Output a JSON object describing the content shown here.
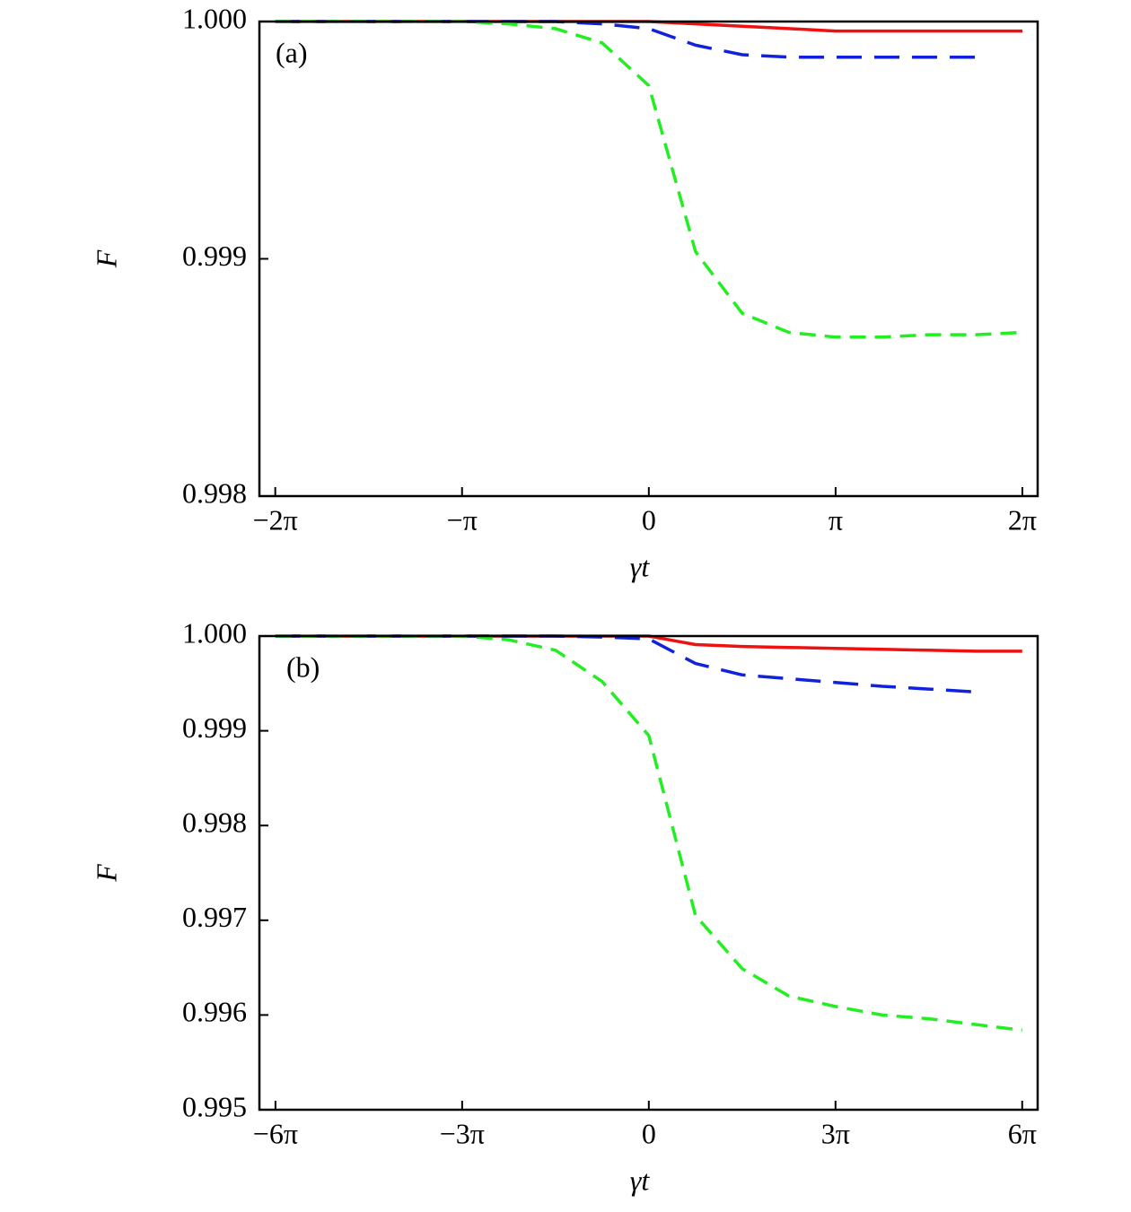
{
  "chart_data": [
    {
      "type": "line",
      "annotation": "(a)",
      "xlabel": "γt",
      "ylabel": "F",
      "x": [
        -6.2832,
        -5.4978,
        -4.7124,
        -3.927,
        -3.1416,
        -2.3562,
        -1.5708,
        -0.7854,
        0,
        0.7854,
        1.5708,
        2.3562,
        3.1416,
        3.927,
        4.7124,
        5.4978,
        6.2832
      ],
      "xlim": [
        -6.55,
        6.54
      ],
      "xticks": [
        {
          "value": -6.2832,
          "label": "−2π"
        },
        {
          "value": -3.1416,
          "label": "−π"
        },
        0,
        {
          "value": 3.1416,
          "label": "π"
        },
        {
          "value": 6.2832,
          "label": "2π"
        }
      ],
      "ylim": [
        0.998,
        1.0
      ],
      "yticks": [
        0.998,
        0.999,
        {
          "value": 1.0,
          "label": "1.000"
        }
      ],
      "series": [
        {
          "color": "#ee1111",
          "dash": "solid",
          "values": [
            1.0,
            1.0,
            1.0,
            1.0,
            1.0,
            1.0,
            1.0,
            1.0,
            1.0,
            0.99999,
            0.99998,
            0.99997,
            0.99996,
            0.99996,
            0.99996,
            0.99996,
            0.99996
          ]
        },
        {
          "color": "#1122dd",
          "dash": "long",
          "values": [
            1.0,
            1.0,
            1.0,
            1.0,
            1.0,
            1.0,
            1.0,
            0.99999,
            0.99997,
            0.9999,
            0.99986,
            0.99985,
            0.99985,
            0.99985,
            0.99985,
            0.99985,
            null
          ]
        },
        {
          "color": "#22ee22",
          "dash": "short",
          "values": [
            1.0,
            1.0,
            1.0,
            1.0,
            1.0,
            0.99999,
            0.99997,
            0.99991,
            0.99973,
            0.99903,
            0.99877,
            0.99869,
            0.99867,
            0.99867,
            0.99868,
            0.99868,
            0.99869
          ]
        }
      ]
    },
    {
      "type": "line",
      "annotation": "(b)",
      "xlabel": "γt",
      "ylabel": "F",
      "x": [
        -18.85,
        -16.493,
        -14.137,
        -11.781,
        -9.425,
        -7.069,
        -4.712,
        -2.356,
        0,
        2.356,
        4.712,
        7.069,
        9.425,
        11.781,
        14.137,
        16.493,
        18.85
      ],
      "xlim": [
        -19.66,
        19.63
      ],
      "xticks": [
        {
          "value": -18.85,
          "label": "−6π"
        },
        {
          "value": -9.425,
          "label": "−3π"
        },
        0,
        {
          "value": 9.425,
          "label": "3π"
        },
        {
          "value": 18.85,
          "label": "6π"
        }
      ],
      "ylim": [
        0.995,
        1.0
      ],
      "yticks": [
        0.995,
        0.996,
        0.997,
        0.998,
        0.999,
        {
          "value": 1.0,
          "label": "1.000"
        }
      ],
      "series": [
        {
          "color": "#ee1111",
          "dash": "solid",
          "values": [
            1.0,
            1.0,
            1.0,
            1.0,
            1.0,
            1.0,
            1.0,
            1.0,
            1.0,
            0.99991,
            0.99989,
            0.99988,
            0.99987,
            0.99986,
            0.99985,
            0.99984,
            0.99984
          ]
        },
        {
          "color": "#1122dd",
          "dash": "long",
          "values": [
            1.0,
            1.0,
            1.0,
            1.0,
            1.0,
            1.0,
            1.0,
            0.99999,
            0.99997,
            0.99971,
            0.99959,
            0.99955,
            0.99951,
            0.99947,
            0.99944,
            0.99941,
            null
          ]
        },
        {
          "color": "#22ee22",
          "dash": "short",
          "values": [
            1.0,
            1.0,
            1.0,
            1.0,
            1.0,
            0.99996,
            0.99985,
            0.99952,
            0.99895,
            0.99705,
            0.99649,
            0.9962,
            0.99609,
            0.996,
            0.99596,
            0.9959,
            0.99584
          ]
        }
      ]
    }
  ]
}
